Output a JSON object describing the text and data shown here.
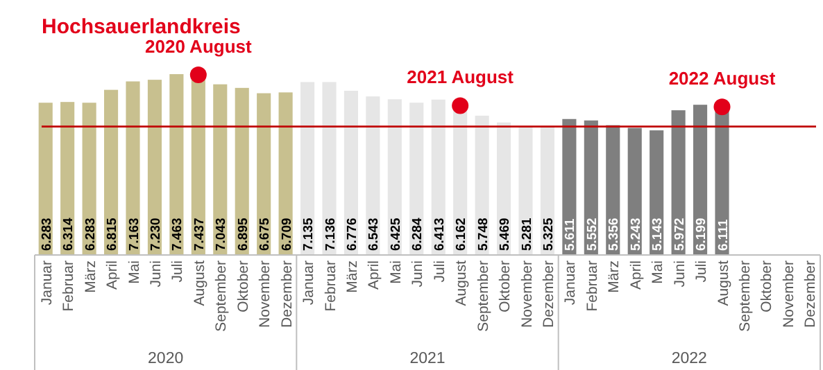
{
  "chart_data": {
    "type": "bar",
    "title": "Hochsauerlandkreis",
    "categories": [
      "Januar",
      "Februar",
      "März",
      "April",
      "Mai",
      "Juni",
      "Juli",
      "August",
      "September",
      "Oktober",
      "November",
      "Dezember",
      "Januar",
      "Februar",
      "März",
      "April",
      "Mai",
      "Juni",
      "Juli",
      "August",
      "September",
      "Oktober",
      "November",
      "Dezember",
      "Januar",
      "Februar",
      "März",
      "April",
      "Mai",
      "Juni",
      "Juli",
      "August",
      "September",
      "Oktober",
      "November",
      "Dezember"
    ],
    "series": [
      {
        "values": [
          6.283,
          6.314,
          6.283,
          6.815,
          7.163,
          7.23,
          7.463,
          7.437,
          7.043,
          6.895,
          6.675,
          6.709,
          7.135,
          7.136,
          6.776,
          6.543,
          6.425,
          6.284,
          6.413,
          6.162,
          5.748,
          5.469,
          5.281,
          5.325,
          5.611,
          5.552,
          5.356,
          5.243,
          5.143,
          5.972,
          6.199,
          6.111,
          null,
          null,
          null,
          null
        ],
        "value_labels": [
          "6.283",
          "6.314",
          "6.283",
          "6.815",
          "7.163",
          "7.230",
          "7.463",
          "7.437",
          "7.043",
          "6.895",
          "6.675",
          "6.709",
          "7.135",
          "7.136",
          "6.776",
          "6.543",
          "6.425",
          "6.284",
          "6.413",
          "6.162",
          "5.748",
          "5.469",
          "5.281",
          "5.325",
          "5.611",
          "5.552",
          "5.356",
          "5.243",
          "5.143",
          "5.972",
          "6.199",
          "6.111",
          null,
          null,
          null,
          null
        ],
        "colors": [
          "#c8c08f",
          "#c8c08f",
          "#c8c08f",
          "#c8c08f",
          "#c8c08f",
          "#c8c08f",
          "#c8c08f",
          "#c8c08f",
          "#c8c08f",
          "#c8c08f",
          "#c8c08f",
          "#c8c08f",
          "#e6e6e6",
          "#e6e6e6",
          "#e6e6e6",
          "#e6e6e6",
          "#e6e6e6",
          "#e6e6e6",
          "#e6e6e6",
          "#e6e6e6",
          "#e6e6e6",
          "#e6e6e6",
          "#e6e6e6",
          "#e6e6e6",
          "#7f7f7f",
          "#7f7f7f",
          "#7f7f7f",
          "#7f7f7f",
          "#7f7f7f",
          "#7f7f7f",
          "#7f7f7f",
          "#7f7f7f",
          null,
          null,
          null,
          null
        ]
      },
      {
        "type": "scatter",
        "color": "#e2001a",
        "values": [
          null,
          null,
          null,
          null,
          null,
          null,
          null,
          7.437,
          null,
          null,
          null,
          null,
          null,
          null,
          null,
          null,
          null,
          null,
          null,
          6.162,
          null,
          null,
          null,
          null,
          null,
          null,
          null,
          null,
          null,
          null,
          null,
          6.111,
          null,
          null,
          null,
          null
        ]
      }
    ],
    "ref_lines": [
      {
        "axis": "y",
        "value": 5.3,
        "color": "#c00000"
      }
    ],
    "annotations": [
      "2020 August",
      "2021 August",
      "2022 August",
      "2020",
      "2021",
      "2022"
    ],
    "marker": "circle"
  }
}
